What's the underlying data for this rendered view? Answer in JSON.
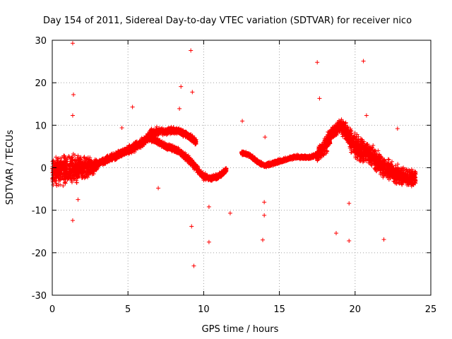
{
  "chart_data": {
    "type": "scatter",
    "title": "Day 154 of 2011, Sidereal Day-to-day VTEC variation (SDTVAR) for receiver nico",
    "xlabel": "GPS time / hours",
    "ylabel": "SDTVAR / TECUs",
    "xlim": [
      0,
      25
    ],
    "ylim": [
      -30,
      30
    ],
    "xticks": [
      "0",
      "5",
      "10",
      "15",
      "20",
      "25"
    ],
    "yticks": [
      "-30",
      "-20",
      "-10",
      "0",
      "10",
      "20",
      "30"
    ],
    "grid": true,
    "marker": "+",
    "color": "#ff0000",
    "dense_bands": [
      {
        "name": "early-scatter",
        "x": [
          0.0,
          1.0,
          2.0,
          3.0
        ],
        "center": [
          -1.0,
          -0.5,
          0.0,
          0.5
        ],
        "spread": [
          4.5,
          4.5,
          3.5,
          2.0
        ]
      },
      {
        "name": "morning-rise",
        "x": [
          3.0,
          4.0,
          5.0,
          6.0,
          6.5,
          7.0
        ],
        "center": [
          1.0,
          2.5,
          4.0,
          6.0,
          8.0,
          8.5
        ],
        "spread": [
          1.0,
          1.2,
          1.2,
          1.5,
          1.5,
          1.5
        ]
      },
      {
        "name": "arc-upper",
        "x": [
          7.0,
          7.5,
          8.0,
          8.5,
          9.0,
          9.5
        ],
        "center": [
          8.5,
          8.5,
          8.8,
          8.5,
          7.5,
          6.0
        ],
        "spread": [
          1.0,
          1.0,
          1.0,
          1.0,
          1.0,
          1.0
        ]
      },
      {
        "name": "arc-lower",
        "x": [
          6.5,
          7.5,
          8.0,
          8.5,
          9.0,
          9.5,
          10.0,
          10.5,
          11.0,
          11.5
        ],
        "center": [
          7.0,
          5.0,
          4.5,
          3.5,
          2.0,
          0.0,
          -2.0,
          -2.5,
          -2.0,
          -0.5
        ],
        "spread": [
          1.0,
          1.0,
          1.0,
          1.0,
          1.0,
          1.0,
          1.0,
          0.8,
          0.8,
          0.8
        ]
      },
      {
        "name": "midday-plateau",
        "x": [
          12.5,
          13.0,
          13.5,
          14.0,
          15.0,
          16.0,
          17.0,
          17.5
        ],
        "center": [
          3.5,
          3.0,
          1.5,
          0.5,
          1.5,
          2.5,
          2.5,
          3.0
        ],
        "spread": [
          0.6,
          0.6,
          0.6,
          0.6,
          0.6,
          0.6,
          0.6,
          0.8
        ]
      },
      {
        "name": "evening-bump",
        "x": [
          17.5,
          18.0,
          18.5,
          19.0,
          19.5,
          20.0,
          21.0,
          22.0,
          23.0,
          24.0
        ],
        "center": [
          3.0,
          5.0,
          8.0,
          10.0,
          8.0,
          5.0,
          3.0,
          0.0,
          -2.0,
          -2.5
        ],
        "spread": [
          2.0,
          3.0,
          2.5,
          2.0,
          3.0,
          3.5,
          3.5,
          3.0,
          3.0,
          2.5
        ]
      }
    ],
    "outliers": [
      [
        1.35,
        29.3
      ],
      [
        1.4,
        17.2
      ],
      [
        1.35,
        12.3
      ],
      [
        1.35,
        -12.4
      ],
      [
        1.7,
        -7.5
      ],
      [
        9.15,
        27.6
      ],
      [
        8.5,
        19.1
      ],
      [
        9.25,
        17.8
      ],
      [
        8.4,
        13.9
      ],
      [
        9.2,
        -13.8
      ],
      [
        9.35,
        -23.1
      ],
      [
        10.35,
        -17.5
      ],
      [
        10.35,
        -9.2
      ],
      [
        11.75,
        -10.7
      ],
      [
        13.9,
        -17.0
      ],
      [
        14.0,
        -11.2
      ],
      [
        14.0,
        -8.1
      ],
      [
        14.05,
        7.2
      ],
      [
        17.5,
        24.8
      ],
      [
        17.65,
        16.3
      ],
      [
        18.75,
        -15.4
      ],
      [
        19.6,
        -17.2
      ],
      [
        19.6,
        -8.4
      ],
      [
        20.55,
        25.1
      ],
      [
        20.75,
        12.3
      ],
      [
        21.9,
        -16.9
      ],
      [
        22.8,
        9.2
      ],
      [
        5.3,
        14.3
      ],
      [
        4.6,
        9.4
      ],
      [
        7.0,
        -4.8
      ],
      [
        12.55,
        11.0
      ]
    ]
  }
}
